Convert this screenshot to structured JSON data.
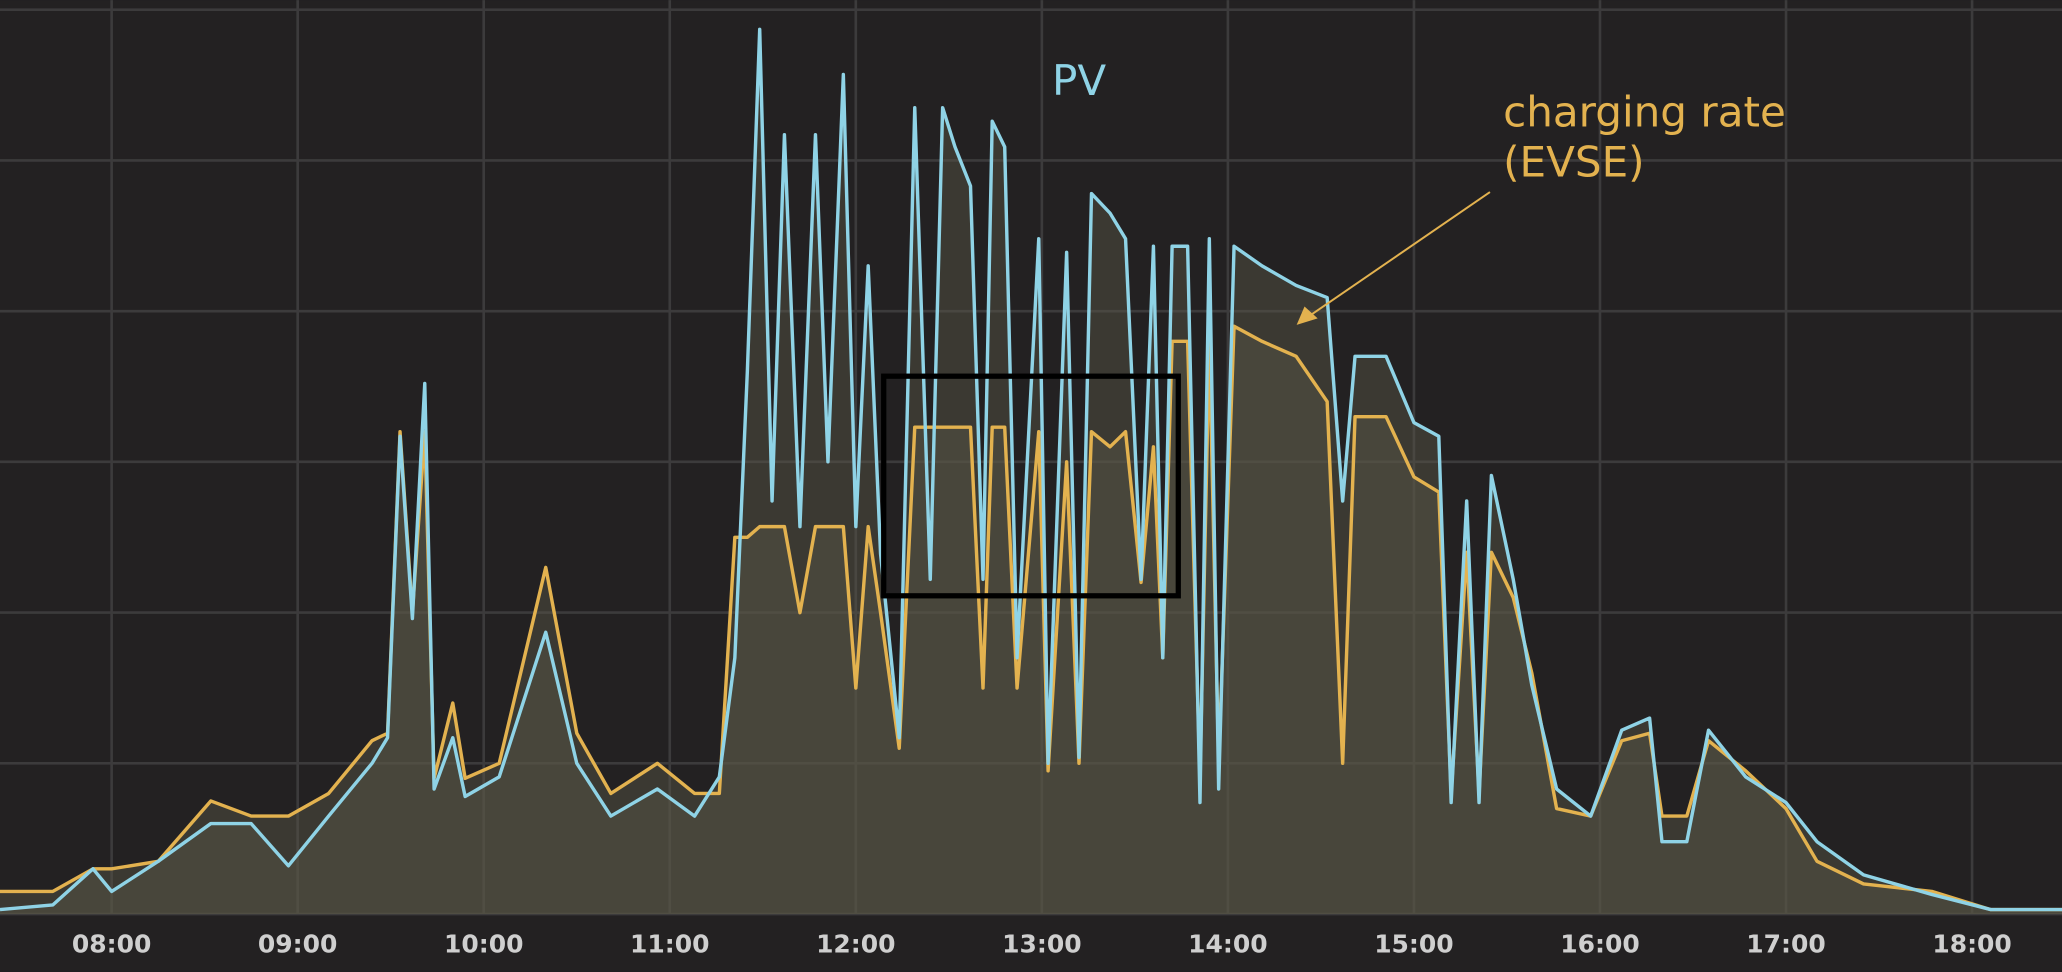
{
  "chart_data": {
    "type": "line",
    "x": [
      "07:24",
      "07:41",
      "07:54",
      "08:00",
      "08:15",
      "08:32",
      "08:45",
      "08:57",
      "09:10",
      "09:24",
      "09:29",
      "09:33",
      "09:37",
      "09:41",
      "09:44",
      "09:50",
      "09:54",
      "10:05",
      "10:20",
      "10:30",
      "10:41",
      "10:56",
      "11:08",
      "11:16",
      "11:21",
      "11:25",
      "11:29",
      "11:33",
      "11:37",
      "11:42",
      "11:47",
      "11:51",
      "11:56",
      "12:00",
      "12:04",
      "12:08",
      "12:14",
      "12:19",
      "12:24",
      "12:28",
      "12:32",
      "12:37",
      "12:41",
      "12:44",
      "12:48",
      "12:52",
      "12:59",
      "13:02",
      "13:08",
      "13:12",
      "13:16",
      "13:22",
      "13:27",
      "13:32",
      "13:36",
      "13:39",
      "13:42",
      "13:47",
      "13:51",
      "13:54",
      "13:57",
      "14:02",
      "14:11",
      "14:22",
      "14:32",
      "14:37",
      "14:41",
      "14:51",
      "15:00",
      "15:08",
      "15:12",
      "15:17",
      "15:21",
      "15:25",
      "15:32",
      "15:38",
      "15:46",
      "15:57",
      "16:07",
      "16:16",
      "16:20",
      "16:28",
      "16:35",
      "16:47",
      "17:00",
      "17:10",
      "17:25",
      "17:47",
      "18:06",
      "18:29"
    ],
    "series": [
      {
        "color": "#e3b24f",
        "values": [
          0.15,
          0.15,
          0.3,
          0.3,
          0.35,
          0.75,
          0.65,
          0.65,
          0.8,
          1.15,
          1.2,
          3.2,
          2.0,
          3.2,
          0.9,
          1.4,
          0.9,
          1.0,
          2.3,
          1.2,
          0.8,
          1.0,
          0.8,
          0.8,
          2.5,
          2.5,
          2.57,
          2.57,
          2.57,
          2.0,
          2.57,
          2.57,
          2.57,
          1.5,
          2.57,
          2.0,
          1.1,
          3.23,
          3.23,
          3.23,
          3.23,
          3.23,
          1.5,
          3.23,
          3.23,
          1.5,
          3.2,
          0.95,
          3.0,
          1.0,
          3.2,
          3.1,
          3.2,
          2.2,
          3.1,
          1.7,
          3.8,
          3.8,
          0.9,
          3.8,
          1.0,
          3.9,
          3.8,
          3.7,
          3.4,
          1.0,
          3.3,
          3.3,
          2.9,
          2.8,
          0.8,
          2.4,
          0.8,
          2.4,
          2.1,
          1.6,
          0.7,
          0.65,
          1.15,
          1.2,
          0.65,
          0.65,
          1.15,
          0.95,
          0.7,
          0.35,
          0.2,
          0.15,
          0.03,
          0.03
        ]
      },
      {
        "color": "#8fd3e6",
        "values": [
          0.03,
          0.06,
          0.3,
          0.15,
          0.35,
          0.6,
          0.6,
          0.32,
          0.65,
          1.0,
          1.17,
          3.17,
          1.96,
          3.52,
          0.83,
          1.17,
          0.78,
          0.91,
          1.87,
          1.0,
          0.65,
          0.83,
          0.65,
          0.91,
          1.7,
          3.6,
          5.87,
          2.74,
          5.17,
          2.57,
          5.17,
          3.0,
          5.57,
          2.57,
          4.3,
          2.39,
          1.17,
          5.35,
          2.22,
          5.35,
          5.09,
          4.83,
          2.22,
          5.26,
          5.09,
          1.7,
          4.48,
          1.0,
          4.39,
          1.04,
          4.78,
          4.65,
          4.48,
          2.22,
          4.43,
          1.7,
          4.43,
          4.43,
          0.74,
          4.48,
          0.83,
          4.43,
          4.3,
          4.17,
          4.09,
          2.74,
          3.7,
          3.7,
          3.26,
          3.17,
          0.74,
          2.74,
          0.74,
          2.91,
          2.22,
          1.52,
          0.83,
          0.65,
          1.22,
          1.3,
          0.48,
          0.48,
          1.22,
          0.91,
          0.74,
          0.48,
          0.26,
          0.13,
          0.03,
          0.03
        ]
      }
    ],
    "annotations": [
      "PV",
      "charging rate",
      "(EVSE)"
    ],
    "xlim": [
      "07:24",
      "18:29"
    ],
    "xticks": [
      "08:00",
      "09:00",
      "10:00",
      "11:00",
      "12:00",
      "13:00",
      "14:00",
      "15:00",
      "16:00",
      "17:00",
      "18:00"
    ],
    "ylim": [
      0,
      6.02
    ],
    "yticks": [
      0,
      1,
      2,
      3,
      4,
      5,
      6
    ],
    "grid": true
  }
}
